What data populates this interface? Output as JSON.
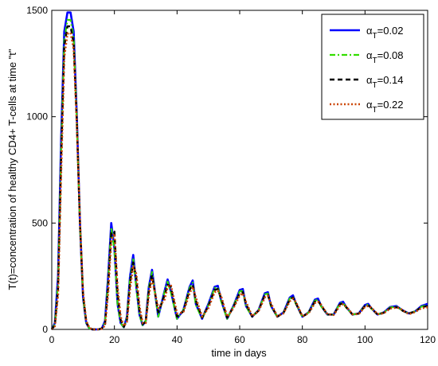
{
  "chart_data": {
    "type": "line",
    "title": "",
    "xlabel": "time in days",
    "ylabel": "T(t)=concentration of healthy CD4+ T-cells at time \"t\"",
    "xlim": [
      0,
      120
    ],
    "ylim": [
      0,
      1500
    ],
    "xticks": [
      0,
      20,
      40,
      60,
      80,
      100,
      120
    ],
    "yticks": [
      0,
      500,
      1000,
      1500
    ],
    "xtick_labels": [
      "0",
      "20",
      "40",
      "60",
      "80",
      "100",
      "120"
    ],
    "ytick_labels": [
      "0",
      "500",
      "1000",
      "1500"
    ],
    "grid": false,
    "legend_position": "top-right",
    "series": [
      {
        "name_prefix": "α",
        "name_sub": "T",
        "name_suffix": "=0.02",
        "color": "#0000ff",
        "style": "solid",
        "x": [
          0,
          1,
          2,
          3,
          4,
          5,
          6,
          7,
          8,
          9,
          10,
          11,
          12,
          13,
          14,
          15,
          16,
          17,
          18,
          19,
          20,
          21,
          22,
          23,
          24,
          25,
          26,
          27,
          28,
          29,
          30,
          31,
          32,
          34,
          36,
          37,
          38,
          40,
          42,
          44,
          45,
          46,
          48,
          50,
          52,
          53,
          54,
          56,
          58,
          60,
          61,
          62,
          64,
          66,
          68,
          69,
          70,
          72,
          74,
          76,
          77,
          78,
          80,
          82,
          84,
          85,
          86,
          88,
          90,
          92,
          93,
          94,
          96,
          98,
          100,
          101,
          102,
          104,
          106,
          108,
          110,
          111,
          112,
          114,
          116,
          118,
          120
        ],
        "y": [
          0,
          30,
          250,
          900,
          1400,
          1490,
          1490,
          1400,
          1000,
          500,
          150,
          30,
          5,
          0,
          0,
          0,
          5,
          40,
          250,
          500,
          380,
          120,
          30,
          10,
          60,
          250,
          350,
          200,
          70,
          20,
          40,
          200,
          280,
          60,
          180,
          235,
          180,
          50,
          90,
          200,
          230,
          120,
          50,
          120,
          200,
          205,
          140,
          50,
          110,
          185,
          190,
          110,
          60,
          90,
          170,
          175,
          110,
          60,
          80,
          150,
          160,
          120,
          60,
          80,
          140,
          145,
          110,
          70,
          70,
          125,
          130,
          105,
          70,
          75,
          115,
          120,
          100,
          70,
          80,
          105,
          110,
          100,
          90,
          75,
          85,
          110,
          120
        ]
      },
      {
        "name_prefix": "α",
        "name_sub": "T",
        "name_suffix": "=0.08",
        "color": "#33dd00",
        "style": "dashdot",
        "x": [
          0,
          1,
          2,
          3,
          4,
          5,
          6,
          7,
          8,
          9,
          10,
          11,
          12,
          13,
          14,
          15,
          16,
          17,
          18,
          19,
          20,
          21,
          22,
          23,
          24,
          25,
          26,
          27,
          28,
          29,
          30,
          31,
          32,
          34,
          36,
          37,
          38,
          40,
          42,
          44,
          45,
          46,
          48,
          50,
          52,
          53,
          54,
          56,
          58,
          60,
          61,
          62,
          64,
          66,
          68,
          69,
          70,
          72,
          74,
          76,
          77,
          78,
          80,
          82,
          84,
          85,
          86,
          88,
          90,
          92,
          93,
          94,
          96,
          98,
          100,
          101,
          102,
          104,
          106,
          108,
          110,
          111,
          112,
          114,
          116,
          118,
          120
        ],
        "y": [
          0,
          25,
          220,
          850,
          1360,
          1455,
          1455,
          1370,
          980,
          490,
          150,
          30,
          5,
          0,
          0,
          0,
          5,
          35,
          230,
          480,
          370,
          120,
          30,
          10,
          55,
          240,
          330,
          195,
          70,
          20,
          40,
          195,
          270,
          60,
          175,
          225,
          175,
          50,
          90,
          195,
          220,
          115,
          50,
          115,
          195,
          198,
          135,
          50,
          110,
          178,
          183,
          108,
          60,
          90,
          165,
          168,
          108,
          60,
          80,
          145,
          155,
          118,
          60,
          80,
          135,
          140,
          108,
          70,
          70,
          122,
          126,
          102,
          70,
          75,
          112,
          117,
          98,
          70,
          80,
          103,
          107,
          98,
          88,
          75,
          85,
          107,
          115
        ]
      },
      {
        "name_prefix": "α",
        "name_sub": "T",
        "name_suffix": "=0.14",
        "color": "#000000",
        "style": "dashed",
        "x": [
          0,
          1,
          2,
          3,
          4,
          5,
          6,
          7,
          8,
          9,
          10,
          11,
          12,
          13,
          14,
          15,
          16,
          17,
          18,
          19,
          20,
          21,
          22,
          23,
          24,
          25,
          26,
          27,
          28,
          29,
          30,
          31,
          32,
          34,
          36,
          37,
          38,
          40,
          42,
          44,
          45,
          46,
          48,
          50,
          52,
          53,
          54,
          56,
          58,
          60,
          61,
          62,
          64,
          66,
          68,
          69,
          70,
          72,
          74,
          76,
          77,
          78,
          80,
          82,
          84,
          85,
          86,
          88,
          90,
          92,
          93,
          94,
          96,
          98,
          100,
          101,
          102,
          104,
          106,
          108,
          110,
          111,
          112,
          114,
          116,
          118,
          120
        ],
        "y": [
          0,
          20,
          190,
          800,
          1330,
          1425,
          1425,
          1345,
          970,
          500,
          160,
          35,
          5,
          0,
          0,
          0,
          5,
          25,
          200,
          455,
          460,
          170,
          45,
          12,
          45,
          220,
          315,
          240,
          90,
          25,
          35,
          180,
          255,
          80,
          160,
          210,
          200,
          60,
          85,
          185,
          210,
          135,
          55,
          110,
          185,
          190,
          150,
          55,
          105,
          170,
          175,
          120,
          60,
          88,
          160,
          162,
          115,
          60,
          78,
          140,
          150,
          122,
          60,
          78,
          130,
          135,
          112,
          70,
          70,
          118,
          122,
          105,
          70,
          74,
          110,
          114,
          100,
          70,
          78,
          100,
          104,
          100,
          88,
          74,
          84,
          104,
          110
        ]
      },
      {
        "name_prefix": "α",
        "name_sub": "T",
        "name_suffix": "=0.22",
        "color": "#cc4400",
        "style": "dotted",
        "x": [
          0,
          1,
          2,
          3,
          4,
          5,
          6,
          7,
          8,
          9,
          10,
          11,
          12,
          13,
          14,
          15,
          16,
          17,
          18,
          19,
          20,
          21,
          22,
          23,
          24,
          25,
          26,
          27,
          28,
          29,
          30,
          31,
          32,
          34,
          36,
          37,
          38,
          40,
          42,
          44,
          45,
          46,
          48,
          50,
          52,
          53,
          54,
          56,
          58,
          60,
          61,
          62,
          64,
          66,
          68,
          69,
          70,
          72,
          74,
          76,
          77,
          78,
          80,
          82,
          84,
          85,
          86,
          88,
          90,
          92,
          93,
          94,
          96,
          98,
          100,
          101,
          102,
          104,
          106,
          108,
          110,
          111,
          112,
          114,
          116,
          118,
          120
        ],
        "y": [
          0,
          15,
          160,
          740,
          1280,
          1390,
          1395,
          1320,
          960,
          510,
          175,
          40,
          8,
          0,
          0,
          0,
          3,
          18,
          170,
          420,
          450,
          200,
          60,
          15,
          35,
          190,
          300,
          260,
          110,
          30,
          30,
          160,
          240,
          100,
          140,
          200,
          210,
          75,
          80,
          170,
          200,
          150,
          60,
          100,
          175,
          182,
          160,
          60,
          100,
          160,
          170,
          130,
          62,
          85,
          150,
          158,
          122,
          62,
          76,
          132,
          145,
          128,
          62,
          76,
          124,
          130,
          116,
          72,
          68,
          112,
          118,
          108,
          72,
          72,
          106,
          110,
          103,
          72,
          76,
          98,
          102,
          101,
          90,
          72,
          82,
          100,
          104
        ]
      }
    ]
  }
}
